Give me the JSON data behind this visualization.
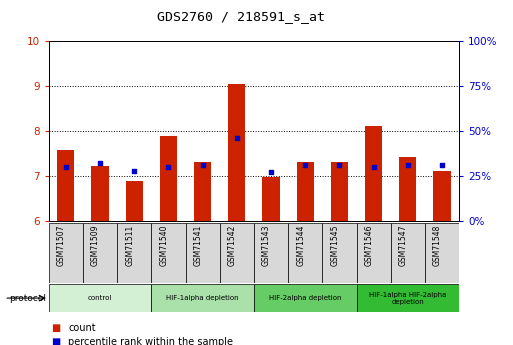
{
  "title": "GDS2760 / 218591_s_at",
  "samples": [
    "GSM71507",
    "GSM71509",
    "GSM71511",
    "GSM71540",
    "GSM71541",
    "GSM71542",
    "GSM71543",
    "GSM71544",
    "GSM71545",
    "GSM71546",
    "GSM71547",
    "GSM71548"
  ],
  "count_values": [
    7.57,
    7.23,
    6.88,
    7.88,
    7.32,
    9.05,
    6.97,
    7.32,
    7.32,
    8.12,
    7.42,
    7.1
  ],
  "percentile_values": [
    30,
    32,
    28,
    30,
    31,
    46,
    27,
    31,
    31,
    30,
    31,
    31
  ],
  "y_min": 6,
  "y_max": 10,
  "y_ticks": [
    6,
    7,
    8,
    9,
    10
  ],
  "y2_ticks": [
    0,
    25,
    50,
    75,
    100
  ],
  "bar_color": "#cc2200",
  "dot_color": "#0000cc",
  "protocol_groups": [
    {
      "label": "control",
      "start": 0,
      "end": 3,
      "color": "#d4f0d4"
    },
    {
      "label": "HIF-1alpha depletion",
      "start": 3,
      "end": 6,
      "color": "#aae0aa"
    },
    {
      "label": "HIF-2alpha depletion",
      "start": 6,
      "end": 9,
      "color": "#66cc66"
    },
    {
      "label": "HIF-1alpha HIF-2alpha\ndepletion",
      "start": 9,
      "end": 12,
      "color": "#33bb33"
    }
  ],
  "legend_count": "count",
  "legend_percentile": "percentile rank within the sample",
  "tick_color_left": "#cc2200",
  "tick_color_right": "#0000cc",
  "sample_box_color": "#d8d8d8"
}
